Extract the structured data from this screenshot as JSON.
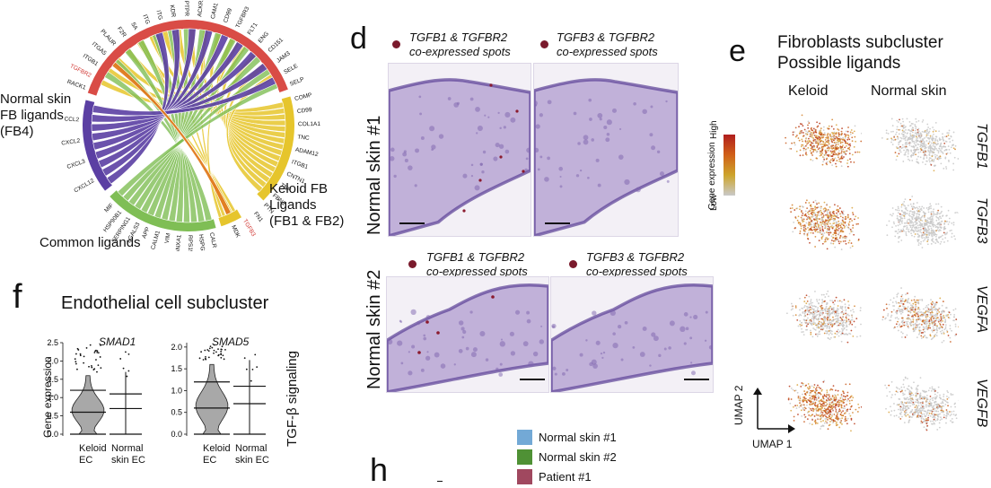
{
  "panel_letters": {
    "d": "d",
    "e": "e",
    "f": "f",
    "h": "h"
  },
  "chord": {
    "group_labels": {
      "normal": [
        "Normal skin",
        "FB ligands",
        "(FB4)"
      ],
      "keloid": [
        "Keloid FB",
        "Ligands",
        "(FB1 & FB2)"
      ],
      "common": "Common ligands"
    },
    "colors": {
      "normal": "#5b3fa3",
      "keloid": "#e6c52c",
      "common": "#7fbe55",
      "receptor": "#d94c46",
      "highlight": "#e07a1e"
    },
    "top_labels": [
      "RACK1",
      "TGFBR2",
      "ITGB1",
      "ITGA5",
      "PLAUR",
      "F2R",
      "SA",
      "ITG",
      "ITG",
      "KDR",
      "PTPR",
      "ACKR1",
      "CAM1",
      "CD99",
      "TGFBR3",
      "FLT1",
      "ENG",
      "CD151",
      "JAM3",
      "SELE",
      "SELP"
    ],
    "normal_genes": [
      "CXCL12",
      "CXCL3",
      "CXCL2",
      "CCL2"
    ],
    "keloid_genes": [
      "COMP",
      "CD99",
      "COL1A1",
      "TNC",
      "ADAM12",
      "ITGB1",
      "CNTN1",
      "TNF",
      "FBN1",
      "PTN",
      "FN1",
      "TGFB3",
      "MDK"
    ],
    "common_genes": [
      "MIF",
      "HSP90B1",
      "SERPING1",
      "LGALS3",
      "APP",
      "CALM1",
      "VIM",
      "ANXA1",
      "RPS19",
      "HSPG2",
      "CALR"
    ],
    "highlighted": [
      "TGFBR2",
      "TGFB3"
    ]
  },
  "panel_d": {
    "row1_label": "Normal skin #1",
    "row2_label": "Normal skin #2",
    "captions": [
      [
        "TGFB1 & TGFBR2",
        "co-expressed spots"
      ],
      [
        "TGFB3 & TGFBR2",
        "co-expressed spots"
      ],
      [
        "TGFB1 & TGFBR2",
        "co-expressed spots"
      ],
      [
        "TGFB3 & TGFBR2",
        "co-expressed spots"
      ]
    ]
  },
  "panel_e": {
    "title": [
      "Fibroblasts subcluster",
      "Possible ligands"
    ],
    "col_keloid": "Keloid",
    "col_normal": "Normal skin",
    "genes": [
      "TGFB1",
      "TGFB3",
      "VEGFA",
      "VEGFB"
    ],
    "keloid_level": [
      0.85,
      0.75,
      0.25,
      0.8
    ],
    "normal_level": [
      0.1,
      0.05,
      0.35,
      0.15
    ],
    "colorbar": {
      "title": "Gene expression",
      "high": "High",
      "low": "Low"
    },
    "umap_x": "UMAP 1",
    "umap_y": "UMAP 2"
  },
  "panel_f": {
    "title": "Endothelial cell subcluster",
    "side_label": "TGF-β signaling",
    "ylabel": "Gene expression",
    "charts": [
      {
        "gene": "SMAD1",
        "yticks": [
          "0.0",
          "0.5",
          "1.0",
          "1.5",
          "2.0",
          "2.5"
        ],
        "ymax": 2.5
      },
      {
        "gene": "SMAD5",
        "yticks": [
          "0.0",
          "0.5",
          "1.0",
          "1.5",
          "2.0"
        ],
        "ymax": 2.1
      }
    ],
    "group1": [
      "Keloid",
      "EC"
    ],
    "group2": [
      "Normal",
      "skin EC"
    ],
    "group2_b": [
      "Normal",
      "skin EC"
    ]
  },
  "legend_h": {
    "items": [
      {
        "label": "Normal skin #1",
        "color": "#73a9d6"
      },
      {
        "label": "Normal skin #2",
        "color": "#4f9135"
      },
      {
        "label": "Patient #1",
        "color": "#a0485f"
      }
    ]
  }
}
